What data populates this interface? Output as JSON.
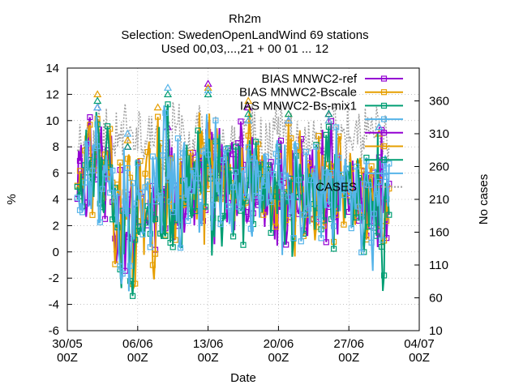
{
  "chart_data": {
    "type": "line",
    "title_lines": [
      "Rh2m",
      "Selection: SwedenOpenLandWind      69 stations",
      "Used 00,03,...,21 + 00 01 ... 12"
    ],
    "xlabel": "Date",
    "ylabel": "%",
    "y2label": "No cases",
    "x_range": [
      "2025-05-30 00:00",
      "2025-07-04 00:00"
    ],
    "x_ticks": [
      {
        "date": "2025-05-30",
        "label": [
          "30/05",
          "00Z"
        ]
      },
      {
        "date": "2025-06-06",
        "label": [
          "06/06",
          "00Z"
        ]
      },
      {
        "date": "2025-06-13",
        "label": [
          "13/06",
          "00Z"
        ]
      },
      {
        "date": "2025-06-20",
        "label": [
          "20/06",
          "00Z"
        ]
      },
      {
        "date": "2025-06-27",
        "label": [
          "27/06",
          "00Z"
        ]
      },
      {
        "date": "2025-07-04",
        "label": [
          "04/07",
          "00Z"
        ]
      }
    ],
    "ylim": [
      -6,
      14
    ],
    "y_ticks": [
      "-6",
      "-4",
      "-2",
      "0",
      "2",
      "4",
      "6",
      "8",
      "10",
      "12",
      "14"
    ],
    "y2lim": [
      10,
      410
    ],
    "y2_ticks": [
      "10",
      "60",
      "110",
      "160",
      "210",
      "260",
      "310",
      "360"
    ],
    "grid": true,
    "legend_position": "top-right",
    "colors": {
      "ref": "#9400d3",
      "bscale": "#e69f00",
      "mix1": "#009e73",
      "blue": "#56b4e9",
      "cases": "#a0a0a0"
    },
    "series": [
      {
        "name": "BIAS MNWC2-ref",
        "key": "ref",
        "marker": "square-open",
        "kind": "bias",
        "peaks": [
          {
            "date": "2025-06-02",
            "max": 11.0,
            "min": 2.0
          },
          {
            "date": "2025-06-05",
            "max": 8.0,
            "min": -3.5
          },
          {
            "date": "2025-06-09",
            "max": 9.5,
            "min": -2.0
          },
          {
            "date": "2025-06-13",
            "max": 12.8,
            "min": -1.0
          },
          {
            "date": "2025-06-17",
            "max": 11.0,
            "min": 0.5
          },
          {
            "date": "2025-06-21",
            "max": 10.0,
            "min": -1.5
          },
          {
            "date": "2025-06-25",
            "max": 10.5,
            "min": 0.5
          },
          {
            "date": "2025-06-30",
            "max": 9.5,
            "min": -2.5
          }
        ]
      },
      {
        "name": "BIAS MNWC2-Bscale",
        "key": "bscale",
        "marker": "square-open",
        "kind": "bias",
        "peaks": [
          {
            "date": "2025-06-02",
            "max": 12.0,
            "min": 1.5
          },
          {
            "date": "2025-06-05",
            "max": 8.5,
            "min": -4.5
          },
          {
            "date": "2025-06-08",
            "max": 11.0,
            "min": -2.5
          },
          {
            "date": "2025-06-13",
            "max": 12.5,
            "min": -0.5
          },
          {
            "date": "2025-06-17",
            "max": 11.5,
            "min": 1.0
          },
          {
            "date": "2025-06-21",
            "max": 10.5,
            "min": -1.0
          },
          {
            "date": "2025-06-25",
            "max": 10.0,
            "min": 0.0
          },
          {
            "date": "2025-06-30",
            "max": 9.0,
            "min": -2.0
          }
        ]
      },
      {
        "name": "BIAS MNWC2-Bs-mix1",
        "key": "mix1",
        "marker": "square-open",
        "kind": "bias",
        "peaks": [
          {
            "date": "2025-06-02",
            "max": 11.5,
            "min": 1.0
          },
          {
            "date": "2025-06-05",
            "max": 8.0,
            "min": -4.0
          },
          {
            "date": "2025-06-09",
            "max": 12.0,
            "min": -3.0
          },
          {
            "date": "2025-06-13",
            "max": 12.0,
            "min": -1.0
          },
          {
            "date": "2025-06-17",
            "max": 10.5,
            "min": 0.0
          },
          {
            "date": "2025-06-21",
            "max": 10.5,
            "min": -1.5
          },
          {
            "date": "2025-06-25",
            "max": 10.5,
            "min": -0.5
          },
          {
            "date": "2025-06-30",
            "max": 9.5,
            "min": -3.5
          }
        ]
      },
      {
        "name": "",
        "key": "blue",
        "marker": "square-open",
        "kind": "bias",
        "peaks": [
          {
            "date": "2025-06-02",
            "max": 11.0,
            "min": 1.5
          },
          {
            "date": "2025-06-05",
            "max": 9.0,
            "min": -4.0
          },
          {
            "date": "2025-06-09",
            "max": 12.5,
            "min": -2.8
          },
          {
            "date": "2025-06-13",
            "max": 12.3,
            "min": -1.0
          },
          {
            "date": "2025-06-17",
            "max": 10.0,
            "min": 0.2
          },
          {
            "date": "2025-06-21",
            "max": 10.0,
            "min": -2.0
          },
          {
            "date": "2025-06-25",
            "max": 10.0,
            "min": 0.0
          },
          {
            "date": "2025-06-30",
            "max": 9.5,
            "min": -2.8
          }
        ]
      },
      {
        "name": "CASES",
        "key": "cases",
        "marker": "none",
        "kind": "cases",
        "values_range": [
          60,
          360
        ]
      }
    ],
    "legend_visible": [
      "BIAS MNWC2-ref",
      "BIAS MNWC2-Bscale",
      "IAS MNWC2-Bs-mix1",
      "CASES"
    ]
  }
}
